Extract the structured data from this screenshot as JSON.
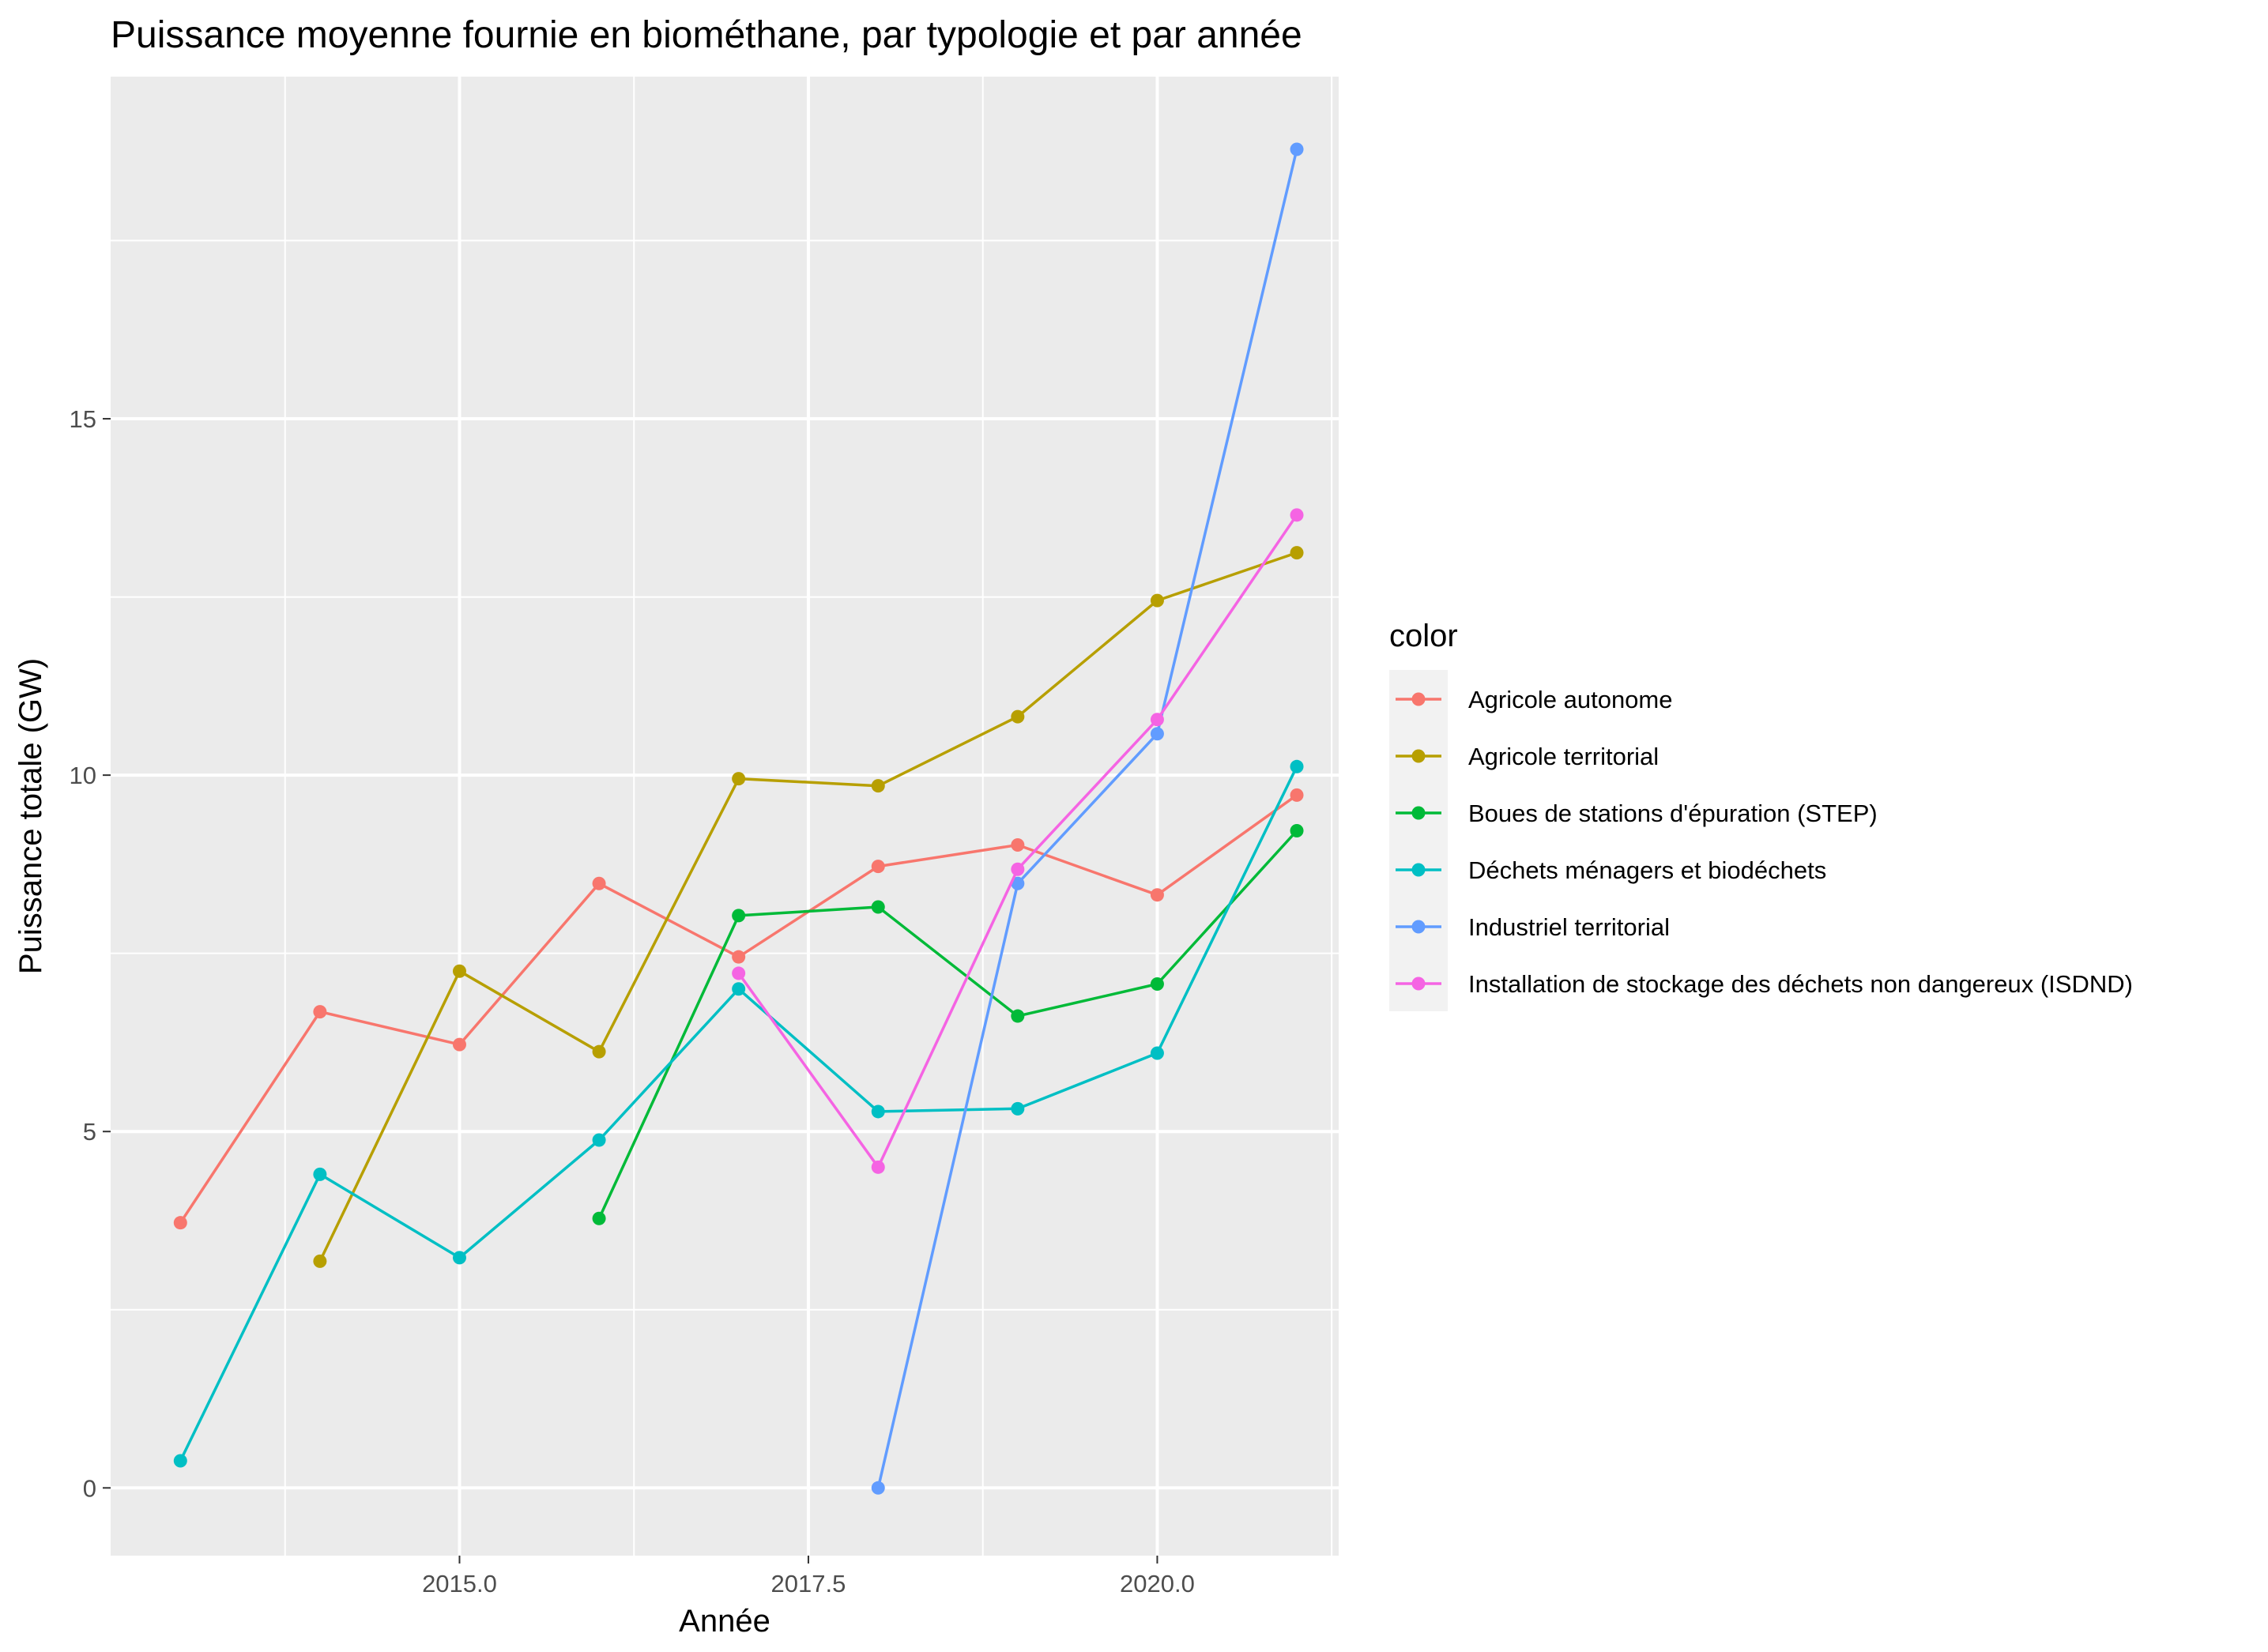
{
  "chart_data": {
    "type": "line",
    "title": "Puissance moyenne fournie en biométhane, par typologie et par année",
    "xlabel": "Année",
    "ylabel": "Puissance totale (GW)",
    "xlim": [
      2012.5,
      2021.3
    ],
    "ylim": [
      -0.95,
      19.8
    ],
    "x_ticks": [
      2015.0,
      2017.5,
      2020.0
    ],
    "x_tick_labels": [
      "2015.0",
      "2017.5",
      "2020.0"
    ],
    "x_minor_ticks": [
      2013.75,
      2016.25,
      2018.75,
      2021.25
    ],
    "y_ticks": [
      0,
      5,
      10,
      15
    ],
    "y_tick_labels": [
      "0",
      "5",
      "10",
      "15"
    ],
    "y_minor_ticks": [
      2.5,
      7.5,
      12.5,
      17.5
    ],
    "grid": true,
    "legend_title": "color",
    "legend_position": "right",
    "series": [
      {
        "name": "Agricole autonome",
        "color": "#F8766D",
        "x": [
          2013,
          2014,
          2015,
          2016,
          2017,
          2018,
          2019,
          2020,
          2021
        ],
        "y": [
          3.72,
          6.68,
          6.22,
          8.48,
          7.45,
          8.72,
          9.02,
          8.32,
          9.72
        ]
      },
      {
        "name": "Agricole territorial",
        "color": "#B79F00",
        "x": [
          2014,
          2015,
          2016,
          2017,
          2018,
          2019,
          2020,
          2021
        ],
        "y": [
          3.18,
          7.25,
          6.12,
          9.95,
          9.85,
          10.82,
          12.45,
          13.12
        ]
      },
      {
        "name": "Boues de stations d'épuration (STEP)",
        "color": "#00BA38",
        "x": [
          2016,
          2017,
          2018,
          2019,
          2020,
          2021
        ],
        "y": [
          3.78,
          8.03,
          8.15,
          6.62,
          7.07,
          9.22
        ]
      },
      {
        "name": "Déchets ménagers et biodéchets",
        "color": "#00BFC4",
        "x": [
          2013,
          2014,
          2015,
          2016,
          2017,
          2018,
          2019,
          2020,
          2021
        ],
        "y": [
          0.38,
          4.4,
          3.23,
          4.88,
          7.0,
          5.28,
          5.32,
          6.1,
          10.12
        ]
      },
      {
        "name": "Industriel territorial",
        "color": "#619CFF",
        "x": [
          2018,
          2019,
          2020,
          2021
        ],
        "y": [
          0.0,
          8.48,
          10.58,
          18.78
        ]
      },
      {
        "name": "Installation de stockage des déchets non dangereux (ISDND)",
        "color": "#F564E3",
        "x": [
          2017,
          2018,
          2019,
          2020,
          2021
        ],
        "y": [
          7.22,
          4.5,
          8.68,
          10.78,
          13.65
        ]
      }
    ]
  }
}
